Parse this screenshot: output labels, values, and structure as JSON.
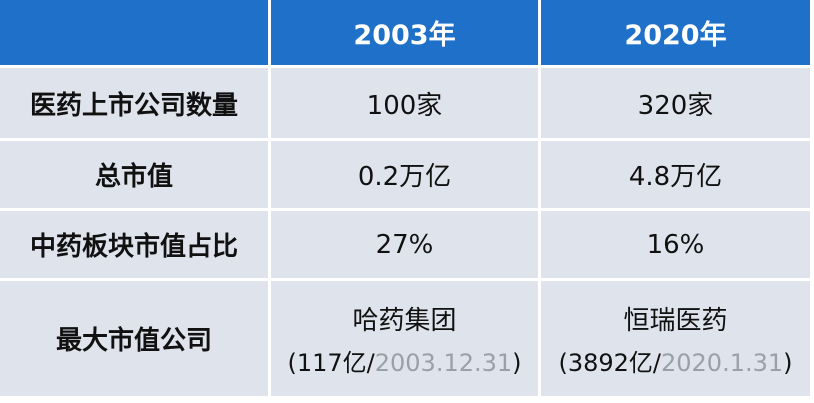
{
  "table": {
    "header": [
      "2003年",
      "2020年"
    ],
    "rows": [
      {
        "label": "医药上市公司数量",
        "cells": [
          [
            "100家"
          ],
          [
            "320家"
          ]
        ]
      },
      {
        "label": "总市值",
        "cells": [
          [
            "0.2万亿"
          ],
          [
            "4.8万亿"
          ]
        ]
      },
      {
        "label": "中药板块市值占比",
        "cells": [
          [
            "27%"
          ],
          [
            "16%"
          ]
        ]
      },
      {
        "label": "最大市值公司",
        "cells": [
          [
            "哈药集团",
            "(117亿/",
            "2003.12.31",
            ")"
          ],
          [
            "恒瑞医药",
            "(3892亿/",
            "2020.1.31",
            ")"
          ]
        ]
      }
    ]
  }
}
